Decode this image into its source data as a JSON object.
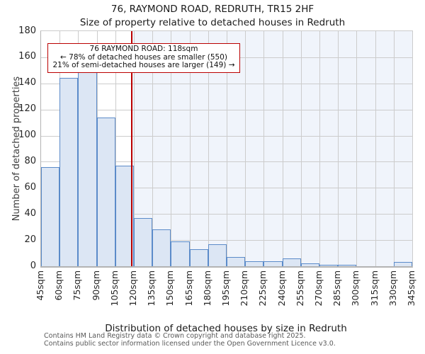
{
  "page": {
    "title_line1": "76, RAYMOND ROAD, REDRUTH, TR15 2HF",
    "title_line2": "Size of property relative to detached houses in Redruth",
    "footer_line1": "Contains HM Land Registry data © Crown copyright and database right 2025.",
    "footer_line2": "Contains public sector information licensed under the Open Government Licence v3.0."
  },
  "chart_data": {
    "type": "bar",
    "title": "76, RAYMOND ROAD, REDRUTH, TR15 2HF",
    "subtitle": "Size of property relative to detached houses in Redruth",
    "xlabel": "Distribution of detached houses by size in Redruth",
    "ylabel": "Number of detached properties",
    "bin_start_sqm": 45,
    "bin_width_sqm": 15,
    "x_tick_labels": [
      "45sqm",
      "60sqm",
      "75sqm",
      "90sqm",
      "105sqm",
      "120sqm",
      "135sqm",
      "150sqm",
      "165sqm",
      "180sqm",
      "195sqm",
      "210sqm",
      "225sqm",
      "240sqm",
      "255sqm",
      "270sqm",
      "285sqm",
      "300sqm",
      "315sqm",
      "330sqm",
      "345sqm"
    ],
    "values": [
      76,
      144,
      149,
      114,
      77,
      37,
      28,
      19,
      13,
      17,
      7,
      4,
      4,
      6,
      2,
      1,
      1,
      0,
      0,
      3
    ],
    "ylim": [
      0,
      180
    ],
    "yticks": [
      0,
      20,
      40,
      60,
      80,
      100,
      120,
      140,
      160,
      180
    ],
    "grid": true,
    "legend": "none",
    "marker": {
      "value_sqm": 118,
      "shade_larger_region": true
    },
    "annotation": {
      "line1": "76 RAYMOND ROAD: 118sqm",
      "line2": "← 78% of detached houses are smaller (550)",
      "line3": "21% of semi-detached houses are larger (149) →"
    },
    "colors": {
      "bar_fill": "#dce6f4",
      "bar_edge": "#5b8bc9",
      "marker_red": "#bb0000",
      "shade_region": "#f0f4fb",
      "gridline": "#cccccc",
      "axis": "#b3b3b3"
    }
  }
}
